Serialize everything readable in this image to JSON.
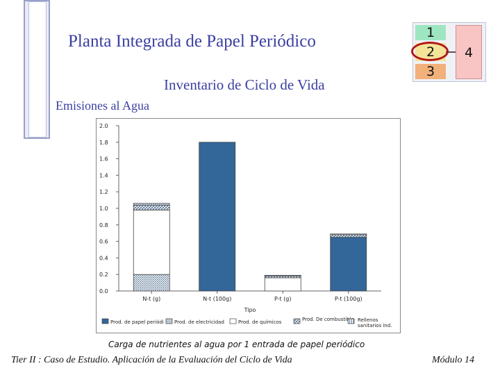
{
  "header": {
    "title": "Planta Integrada de Papel Periódico",
    "subtitle": "Inventario de Ciclo de Vida",
    "section": "Emisiones al Agua"
  },
  "step_nav": {
    "steps": [
      "1",
      "2",
      "3",
      "4"
    ],
    "highlighted": "2"
  },
  "chart_data": {
    "type": "bar",
    "stacked": true,
    "categories": [
      "N-t (g)",
      "N-t (100g)",
      "P-t (g)",
      "P-t (100g)"
    ],
    "xlabel": "Tipo",
    "ylabel": "",
    "ylim": [
      0,
      2.0
    ],
    "yticks": [
      0.0,
      0.2,
      0.4,
      0.6,
      0.8,
      1.0,
      1.2,
      1.4,
      1.6,
      1.8,
      2.0
    ],
    "ytick_labels": [
      "0.0",
      "0.2",
      "0.4",
      "0.6",
      "0.8",
      "1.0",
      "1.2",
      "1.4",
      "1.6",
      "1.8",
      "2.0"
    ],
    "grid": false,
    "legend_position": "bottom",
    "series": [
      {
        "name": "Prod. de papel periódi",
        "color": "#336699",
        "pattern": "solid",
        "values": [
          0.0,
          1.8,
          0.0,
          0.65
        ]
      },
      {
        "name": "Prod. de electricidad",
        "color": "#ffffff",
        "pattern": "dots",
        "values": [
          0.2,
          0.0,
          0.0,
          0.0
        ]
      },
      {
        "name": "Prod. de químicos",
        "color": "#ffffff",
        "pattern": "solid-white",
        "values": [
          0.78,
          0.0,
          0.16,
          0.0
        ]
      },
      {
        "name": "Prod. De combustible",
        "color": "#ffffff",
        "pattern": "hatch",
        "values": [
          0.06,
          0.0,
          0.02,
          0.03
        ]
      },
      {
        "name": "Rellenos sanitarios ind.",
        "color": "#ffffff",
        "pattern": "vlines",
        "values": [
          0.02,
          0.0,
          0.01,
          0.01
        ]
      }
    ],
    "caption": "Carga de nutrientes al agua por 1 entrada de papel periódico"
  },
  "footer": {
    "left": "Tier II : Caso de Estudio. Aplicación de la Evaluación del Ciclo de Vida",
    "right": "Módulo 14"
  }
}
